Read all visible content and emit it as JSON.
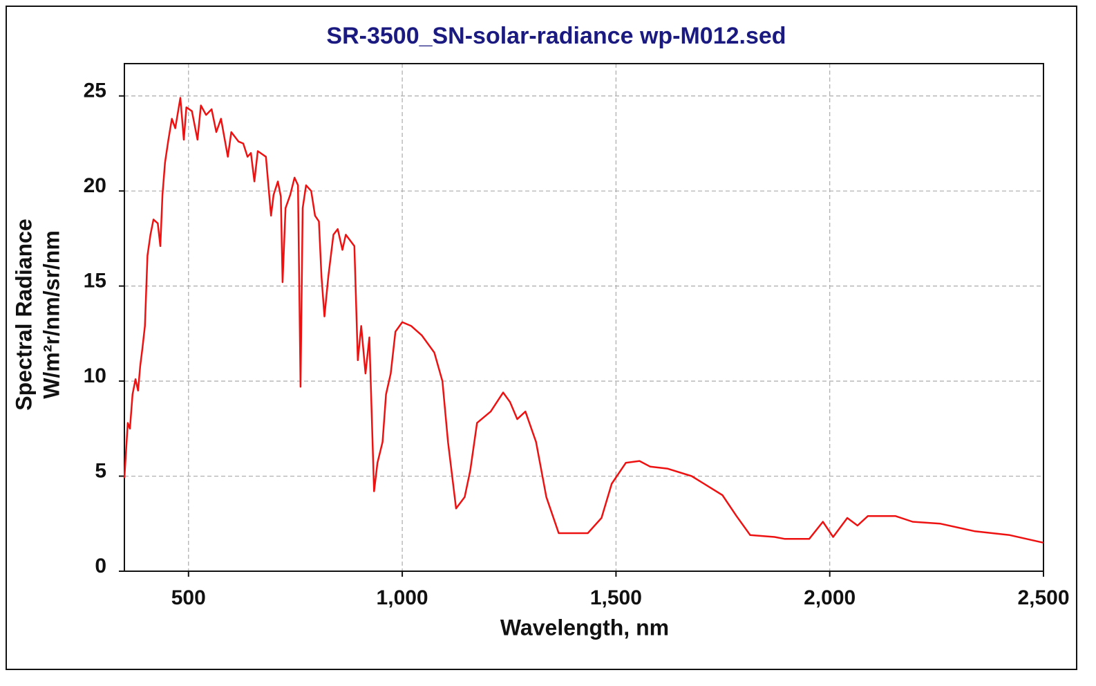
{
  "chart_data": {
    "type": "line",
    "title": "SR-3500_SN-solar-radiance  wp-M012.sed",
    "xlabel": "Wavelength, nm",
    "ylabel": [
      "Spectral Radiance",
      "W/m²r/nm/sr/nm"
    ],
    "xlim": [
      350,
      2500
    ],
    "ylim": [
      0,
      26.7
    ],
    "xticks": [
      500,
      {
        "value": 1000,
        "label": "1,000"
      },
      {
        "value": 1500,
        "label": "1,500"
      },
      {
        "value": 2000,
        "label": "2,000"
      },
      {
        "value": 2500,
        "label": "2,500"
      }
    ],
    "yticks": [
      0,
      5,
      10,
      15,
      20,
      25
    ],
    "grid": true,
    "series": [
      {
        "color": "#ee1111",
        "x": [
          350,
          358,
          363,
          369,
          376,
          382,
          387,
          392,
          398,
          404,
          411,
          418,
          428,
          434,
          439,
          445,
          453,
          461,
          469,
          481,
          489,
          495,
          508,
          521,
          529,
          541,
          554,
          565,
          576,
          592,
          600,
          617,
          628,
          638,
          646,
          654,
          662,
          681,
          693,
          699,
          709,
          716,
          720,
          727,
          738,
          748,
          756,
          762,
          767,
          775,
          787,
          796,
          805,
          811,
          818,
          827,
          839,
          849,
          860,
          868,
          888,
          896,
          904,
          914,
          923,
          934,
          942,
          954,
          962,
          973,
          984,
          1000,
          1021,
          1046,
          1075,
          1094,
          1107,
          1126,
          1146,
          1159,
          1175,
          1207,
          1236,
          1252,
          1269,
          1288,
          1313,
          1337,
          1366,
          1434,
          1466,
          1490,
          1523,
          1555,
          1580,
          1620,
          1677,
          1749,
          1782,
          1814,
          1871,
          1895,
          1952,
          1984,
          2008,
          2041,
          2065,
          2089,
          2154,
          2194,
          2259,
          2340,
          2421,
          2500
        ],
        "values": [
          4.9,
          7.8,
          7.5,
          9.3,
          10.1,
          9.5,
          10.8,
          11.7,
          12.9,
          16.6,
          17.7,
          18.5,
          18.3,
          17.1,
          19.8,
          21.5,
          22.7,
          23.8,
          23.3,
          24.9,
          22.7,
          24.4,
          24.2,
          22.7,
          24.5,
          24.0,
          24.3,
          23.1,
          23.8,
          21.8,
          23.1,
          22.6,
          22.5,
          21.8,
          22.0,
          20.5,
          22.1,
          21.8,
          18.7,
          19.8,
          20.5,
          19.7,
          15.2,
          19.1,
          19.8,
          20.7,
          20.3,
          9.7,
          19.1,
          20.3,
          20.0,
          18.7,
          18.4,
          15.5,
          13.4,
          15.5,
          17.7,
          18.0,
          16.9,
          17.7,
          17.1,
          11.1,
          12.9,
          10.4,
          12.3,
          4.2,
          5.7,
          6.8,
          9.3,
          10.4,
          12.6,
          13.1,
          12.9,
          12.4,
          11.5,
          10.0,
          6.8,
          3.3,
          3.9,
          5.3,
          7.8,
          8.4,
          9.4,
          8.9,
          8.0,
          8.4,
          6.8,
          3.9,
          2.0,
          2.0,
          2.8,
          4.6,
          5.7,
          5.8,
          5.5,
          5.4,
          5.0,
          4.0,
          2.9,
          1.9,
          1.8,
          1.7,
          1.7,
          2.6,
          1.8,
          2.8,
          2.4,
          2.9,
          2.9,
          2.6,
          2.5,
          2.1,
          1.9,
          1.5
        ]
      }
    ]
  }
}
